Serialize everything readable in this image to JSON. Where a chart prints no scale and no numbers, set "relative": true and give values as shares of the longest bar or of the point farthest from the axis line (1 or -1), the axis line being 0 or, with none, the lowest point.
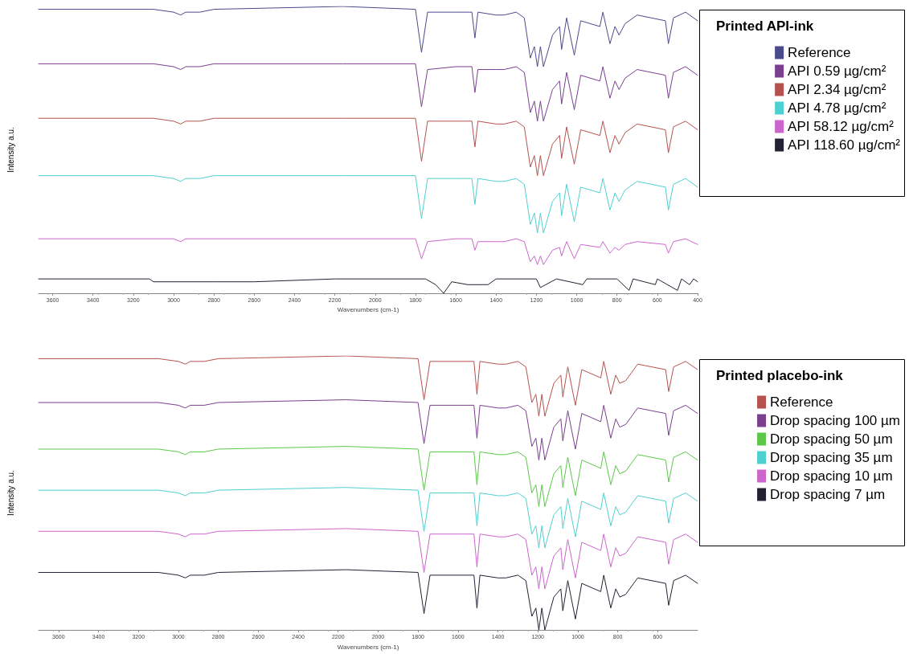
{
  "chart_data": [
    {
      "type": "line",
      "relative": true,
      "xlabel": "Wavenumbers (cm-1)",
      "ylabel": "Intensity a.u.",
      "legend_title": "Printed API-ink",
      "legend": "right",
      "tick_labels": "x",
      "marker": "none",
      "line_style": "solid",
      "xlim": [
        3670,
        400
      ],
      "xticks": [
        3600,
        3400,
        3200,
        3000,
        2800,
        2600,
        2400,
        2200,
        2000,
        1800,
        1600,
        1400,
        1200,
        1000,
        800,
        600,
        400
      ],
      "x": [
        3670,
        3100,
        3000,
        2965,
        2940,
        2870,
        2800,
        2160,
        1800,
        1770,
        1740,
        1600,
        1520,
        1505,
        1490,
        1400,
        1360,
        1300,
        1260,
        1230,
        1210,
        1195,
        1180,
        1165,
        1120,
        1085,
        1075,
        1050,
        1012,
        980,
        885,
        870,
        835,
        810,
        790,
        760,
        700,
        560,
        545,
        520,
        460,
        400
      ],
      "series": [
        {
          "name": "Reference",
          "color": "#4a4a8c",
          "values": [
            0.99,
            0.99,
            0.98,
            0.97,
            0.98,
            0.98,
            0.99,
            1.0,
            0.99,
            0.84,
            0.98,
            0.98,
            0.98,
            0.89,
            0.98,
            0.97,
            0.97,
            0.98,
            0.96,
            0.82,
            0.86,
            0.79,
            0.86,
            0.79,
            0.9,
            0.93,
            0.85,
            0.96,
            0.83,
            0.95,
            0.93,
            0.98,
            0.87,
            0.93,
            0.9,
            0.94,
            0.97,
            0.95,
            0.87,
            0.96,
            0.98,
            0.95
          ]
        },
        {
          "name": "API 0.59 µg/cm²",
          "color": "#7a3f8f",
          "values": [
            0.8,
            0.8,
            0.79,
            0.78,
            0.79,
            0.79,
            0.8,
            0.8,
            0.8,
            0.65,
            0.78,
            0.79,
            0.79,
            0.7,
            0.78,
            0.78,
            0.78,
            0.79,
            0.77,
            0.63,
            0.67,
            0.6,
            0.67,
            0.6,
            0.71,
            0.74,
            0.66,
            0.77,
            0.64,
            0.76,
            0.74,
            0.79,
            0.68,
            0.74,
            0.71,
            0.75,
            0.78,
            0.76,
            0.68,
            0.77,
            0.79,
            0.76
          ]
        },
        {
          "name": "API 2.34 µg/cm²",
          "color": "#b5524f",
          "values": [
            0.61,
            0.61,
            0.6,
            0.59,
            0.6,
            0.6,
            0.61,
            0.61,
            0.61,
            0.46,
            0.6,
            0.6,
            0.6,
            0.51,
            0.6,
            0.59,
            0.59,
            0.6,
            0.58,
            0.44,
            0.48,
            0.41,
            0.48,
            0.41,
            0.52,
            0.55,
            0.47,
            0.58,
            0.45,
            0.57,
            0.55,
            0.6,
            0.49,
            0.55,
            0.52,
            0.56,
            0.59,
            0.57,
            0.49,
            0.58,
            0.6,
            0.57
          ]
        },
        {
          "name": "API 4.78 µg/cm²",
          "color": "#4fd0d0",
          "values": [
            0.41,
            0.41,
            0.4,
            0.39,
            0.4,
            0.4,
            0.41,
            0.41,
            0.41,
            0.26,
            0.4,
            0.4,
            0.4,
            0.31,
            0.4,
            0.39,
            0.39,
            0.4,
            0.38,
            0.24,
            0.28,
            0.21,
            0.28,
            0.21,
            0.32,
            0.35,
            0.27,
            0.38,
            0.25,
            0.37,
            0.35,
            0.4,
            0.29,
            0.35,
            0.32,
            0.36,
            0.39,
            0.37,
            0.29,
            0.38,
            0.4,
            0.37
          ]
        },
        {
          "name": "API 58.12 µg/cm²",
          "color": "#cc66cc",
          "values": [
            0.19,
            0.19,
            0.19,
            0.18,
            0.19,
            0.19,
            0.19,
            0.19,
            0.19,
            0.12,
            0.18,
            0.19,
            0.19,
            0.15,
            0.18,
            0.18,
            0.18,
            0.19,
            0.18,
            0.11,
            0.13,
            0.1,
            0.13,
            0.1,
            0.15,
            0.16,
            0.13,
            0.18,
            0.12,
            0.17,
            0.16,
            0.18,
            0.14,
            0.16,
            0.15,
            0.17,
            0.18,
            0.17,
            0.14,
            0.18,
            0.19,
            0.17
          ]
        },
        {
          "name": "API 118.60 µg/cm²",
          "color": "#222233",
          "x": [
            3670,
            3120,
            3100,
            2800,
            2600,
            2200,
            1750,
            1700,
            1660,
            1620,
            1540,
            1440,
            1400,
            1200,
            1180,
            1100,
            970,
            950,
            800,
            740,
            720,
            610,
            600,
            500,
            480,
            440,
            420,
            400
          ],
          "values": [
            0.05,
            0.05,
            0.04,
            0.04,
            0.04,
            0.05,
            0.05,
            0.03,
            0.0,
            0.04,
            0.03,
            0.03,
            0.05,
            0.05,
            0.02,
            0.05,
            0.03,
            0.05,
            0.05,
            0.01,
            0.05,
            0.03,
            0.05,
            0.01,
            0.05,
            0.03,
            0.05,
            0.04
          ]
        }
      ]
    },
    {
      "type": "line",
      "relative": true,
      "xlabel": "Wavenumbers (cm-1)",
      "ylabel": "Intensity a.u.",
      "legend_title": "Printed placebo-ink",
      "legend": "right",
      "tick_labels": "x",
      "marker": "none",
      "line_style": "solid",
      "xlim": [
        3700,
        400
      ],
      "xticks": [
        3600,
        3400,
        3200,
        3000,
        2800,
        2600,
        2400,
        2200,
        2000,
        1800,
        1600,
        1400,
        1200,
        1000,
        800,
        600
      ],
      "x": [
        3700,
        3100,
        3000,
        2965,
        2940,
        2870,
        2800,
        2160,
        1800,
        1770,
        1740,
        1600,
        1520,
        1505,
        1490,
        1400,
        1360,
        1300,
        1260,
        1230,
        1210,
        1195,
        1180,
        1165,
        1120,
        1085,
        1075,
        1050,
        1012,
        980,
        885,
        870,
        835,
        810,
        790,
        760,
        700,
        560,
        545,
        520,
        460,
        400
      ],
      "series": [
        {
          "name": "Reference",
          "color": "#b5524f",
          "values": [
            0.99,
            0.99,
            0.98,
            0.97,
            0.98,
            0.98,
            0.99,
            1.0,
            0.99,
            0.84,
            0.98,
            0.98,
            0.98,
            0.86,
            0.98,
            0.97,
            0.97,
            0.98,
            0.96,
            0.83,
            0.86,
            0.78,
            0.86,
            0.78,
            0.9,
            0.93,
            0.85,
            0.96,
            0.82,
            0.95,
            0.92,
            0.98,
            0.86,
            0.93,
            0.9,
            0.91,
            0.97,
            0.95,
            0.87,
            0.96,
            0.98,
            0.95
          ]
        },
        {
          "name": "Drop spacing 100 µm",
          "color": "#7a3f8f",
          "values": [
            0.83,
            0.83,
            0.82,
            0.81,
            0.82,
            0.82,
            0.83,
            0.84,
            0.83,
            0.68,
            0.82,
            0.82,
            0.82,
            0.7,
            0.82,
            0.81,
            0.81,
            0.82,
            0.8,
            0.67,
            0.7,
            0.62,
            0.7,
            0.62,
            0.74,
            0.77,
            0.69,
            0.8,
            0.66,
            0.79,
            0.76,
            0.82,
            0.7,
            0.77,
            0.74,
            0.75,
            0.81,
            0.79,
            0.71,
            0.8,
            0.82,
            0.79
          ]
        },
        {
          "name": "Drop spacing 50 µm",
          "color": "#5cc84a",
          "values": [
            0.66,
            0.66,
            0.65,
            0.64,
            0.65,
            0.65,
            0.66,
            0.67,
            0.66,
            0.51,
            0.65,
            0.65,
            0.65,
            0.53,
            0.65,
            0.64,
            0.64,
            0.65,
            0.63,
            0.5,
            0.53,
            0.45,
            0.53,
            0.45,
            0.57,
            0.6,
            0.52,
            0.63,
            0.49,
            0.62,
            0.59,
            0.65,
            0.53,
            0.6,
            0.57,
            0.58,
            0.64,
            0.62,
            0.54,
            0.63,
            0.65,
            0.62
          ]
        },
        {
          "name": "Drop spacing 35 µm",
          "color": "#4fd0d0",
          "values": [
            0.51,
            0.51,
            0.5,
            0.49,
            0.5,
            0.5,
            0.51,
            0.52,
            0.51,
            0.36,
            0.5,
            0.5,
            0.5,
            0.38,
            0.5,
            0.49,
            0.49,
            0.5,
            0.48,
            0.35,
            0.38,
            0.3,
            0.38,
            0.3,
            0.42,
            0.45,
            0.37,
            0.48,
            0.34,
            0.47,
            0.44,
            0.5,
            0.38,
            0.45,
            0.42,
            0.43,
            0.49,
            0.47,
            0.39,
            0.48,
            0.5,
            0.47
          ]
        },
        {
          "name": "Drop spacing 10 µm",
          "color": "#cc66cc",
          "values": [
            0.36,
            0.36,
            0.35,
            0.34,
            0.35,
            0.35,
            0.36,
            0.37,
            0.36,
            0.21,
            0.35,
            0.35,
            0.35,
            0.23,
            0.35,
            0.34,
            0.34,
            0.35,
            0.33,
            0.2,
            0.23,
            0.15,
            0.23,
            0.15,
            0.27,
            0.3,
            0.22,
            0.33,
            0.19,
            0.32,
            0.29,
            0.35,
            0.23,
            0.3,
            0.27,
            0.28,
            0.34,
            0.32,
            0.24,
            0.33,
            0.35,
            0.32
          ]
        },
        {
          "name": "Drop spacing 7 µm",
          "color": "#222233",
          "values": [
            0.21,
            0.21,
            0.2,
            0.19,
            0.2,
            0.2,
            0.21,
            0.22,
            0.21,
            0.06,
            0.2,
            0.2,
            0.2,
            0.08,
            0.2,
            0.19,
            0.19,
            0.2,
            0.18,
            0.05,
            0.08,
            0.0,
            0.08,
            0.0,
            0.12,
            0.15,
            0.07,
            0.18,
            0.04,
            0.17,
            0.14,
            0.2,
            0.08,
            0.15,
            0.12,
            0.13,
            0.19,
            0.17,
            0.09,
            0.18,
            0.2,
            0.17
          ]
        }
      ]
    }
  ]
}
